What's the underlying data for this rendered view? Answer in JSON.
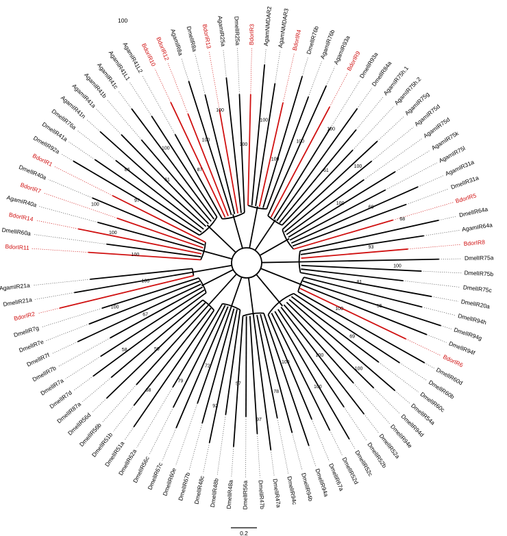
{
  "figure": {
    "corner_label": "100",
    "scale_label": "0.2",
    "highlight_color": "#d01010",
    "tips": [
      {
        "label": "AgamIR21a",
        "red": false
      },
      {
        "label": "DmelIR21a",
        "red": false
      },
      {
        "label": "BdorIR2",
        "red": true
      },
      {
        "label": "DmelIR7g",
        "red": false
      },
      {
        "label": "DmelIR7e",
        "red": false
      },
      {
        "label": "DmelIR7f",
        "red": false
      },
      {
        "label": "DmelIR7b",
        "red": false
      },
      {
        "label": "DmelIR7a",
        "red": false
      },
      {
        "label": "DmelIR7d",
        "red": false
      },
      {
        "label": "DmelIR87a",
        "red": false
      },
      {
        "label": "DmelIR56d",
        "red": false
      },
      {
        "label": "DmelIR56b",
        "red": false
      },
      {
        "label": "DmelIR51b",
        "red": false
      },
      {
        "label": "DmelIR51a",
        "red": false
      },
      {
        "label": "DmelIR62a",
        "red": false
      },
      {
        "label": "DmelIR56c",
        "red": false
      },
      {
        "label": "DmelIR67c",
        "red": false
      },
      {
        "label": "DmelIR60e",
        "red": false
      },
      {
        "label": "DmelIR67b",
        "red": false
      },
      {
        "label": "DmelIR48c",
        "red": false
      },
      {
        "label": "DmelIR48b",
        "red": false
      },
      {
        "label": "DmelIR48a",
        "red": false
      },
      {
        "label": "DmelIR56a",
        "red": false
      },
      {
        "label": "DmelIR47b",
        "red": false
      },
      {
        "label": "DmelIR47a",
        "red": false
      },
      {
        "label": "DmelIR94c",
        "red": false
      },
      {
        "label": "DmelIR94b",
        "red": false
      },
      {
        "label": "DmelIR94a",
        "red": false
      },
      {
        "label": "DmelIR67a",
        "red": false
      },
      {
        "label": "DmelIR52d",
        "red": false
      },
      {
        "label": "DmelIR52c",
        "red": false
      },
      {
        "label": "DmelIR52b",
        "red": false
      },
      {
        "label": "DmelIR52a",
        "red": false
      },
      {
        "label": "DmelIR94e",
        "red": false
      },
      {
        "label": "DmelIR94d",
        "red": false
      },
      {
        "label": "DmelIR54a",
        "red": false
      },
      {
        "label": "DmelIR60c",
        "red": false
      },
      {
        "label": "DmelIR60b",
        "red": false
      },
      {
        "label": "DmelIR60d",
        "red": false
      },
      {
        "label": "BdorIR6",
        "red": true
      },
      {
        "label": "DmelIR94f",
        "red": false
      },
      {
        "label": "DmelIR94g",
        "red": false
      },
      {
        "label": "DmelIR94h",
        "red": false
      },
      {
        "label": "DmelIR20a",
        "red": false
      },
      {
        "label": "DmelIR75c",
        "red": false
      },
      {
        "label": "DmelIR75b",
        "red": false
      },
      {
        "label": "DmelIR75a",
        "red": false
      },
      {
        "label": "BdorIR8",
        "red": true
      },
      {
        "label": "AgamIR64a",
        "red": false
      },
      {
        "label": "DmelIR64a",
        "red": false
      },
      {
        "label": "BdorIR5",
        "red": true
      },
      {
        "label": "DmelIR31a",
        "red": false
      },
      {
        "label": "AgamIR31a",
        "red": false
      },
      {
        "label": "AgamIR75l",
        "red": false
      },
      {
        "label": "AgamIR75k",
        "red": false
      },
      {
        "label": "AgamIR75d",
        "red": false
      },
      {
        "label": "AgamIR75d",
        "red": false
      },
      {
        "label": "AgamIR75g",
        "red": false
      },
      {
        "label": "AgamIR75h.2",
        "red": false
      },
      {
        "label": "AgamIR75h.1",
        "red": false
      },
      {
        "label": "DmelIR84a",
        "red": false
      },
      {
        "label": "DmelIR93a",
        "red": false
      },
      {
        "label": "BdorIR9",
        "red": true
      },
      {
        "label": "AgamIR93a",
        "red": false
      },
      {
        "label": "AgamIR76b",
        "red": false
      },
      {
        "label": "DmelIR76b",
        "red": false
      },
      {
        "label": "BdorIR4",
        "red": true
      },
      {
        "label": "AgamNMDAR3",
        "red": false
      },
      {
        "label": "AgamNMDAR2",
        "red": false
      },
      {
        "label": "BdorIR3",
        "red": true
      },
      {
        "label": "DmelIR25a",
        "red": false
      },
      {
        "label": "AgamIR25a",
        "red": false
      },
      {
        "label": "BdorIR13",
        "red": true
      },
      {
        "label": "DmelIR8a",
        "red": false
      },
      {
        "label": "AgamIR8a",
        "red": false
      },
      {
        "label": "BdorIR12",
        "red": true
      },
      {
        "label": "BdorIR10",
        "red": true
      },
      {
        "label": "AgamIR41L2",
        "red": false
      },
      {
        "label": "AgamIR41L1",
        "red": false
      },
      {
        "label": "AgamIR41c",
        "red": false
      },
      {
        "label": "AgamIR41b",
        "red": false
      },
      {
        "label": "AgamIR41a",
        "red": false
      },
      {
        "label": "AgamIR41n",
        "red": false
      },
      {
        "label": "DmelIR76a",
        "red": false
      },
      {
        "label": "DmelIR41a",
        "red": false
      },
      {
        "label": "DmelIR92a",
        "red": false
      },
      {
        "label": "BdorIR1",
        "red": true
      },
      {
        "label": "DmelIR40a",
        "red": false
      },
      {
        "label": "BdorIR7",
        "red": true
      },
      {
        "label": "AgamIR40a",
        "red": false
      },
      {
        "label": "BdorIR14",
        "red": true
      },
      {
        "label": "DmelIR60a",
        "red": false
      },
      {
        "label": "BdorIR11",
        "red": true
      }
    ],
    "support_values": [
      {
        "value": "100"
      },
      {
        "value": "100"
      },
      {
        "value": "67"
      },
      {
        "value": "58"
      },
      {
        "value": "50"
      },
      {
        "value": "68"
      },
      {
        "value": "79"
      },
      {
        "value": "72"
      },
      {
        "value": "92"
      },
      {
        "value": "57"
      },
      {
        "value": "97"
      },
      {
        "value": "78"
      },
      {
        "value": "100"
      },
      {
        "value": "100"
      },
      {
        "value": "100"
      },
      {
        "value": "100"
      },
      {
        "value": "69"
      },
      {
        "value": "100"
      },
      {
        "value": "55"
      },
      {
        "value": "81"
      },
      {
        "value": "100"
      },
      {
        "value": "93"
      },
      {
        "value": "68"
      },
      {
        "value": "69"
      },
      {
        "value": "100"
      },
      {
        "value": "100"
      },
      {
        "value": "61"
      },
      {
        "value": "100"
      },
      {
        "value": "100"
      },
      {
        "value": "100"
      },
      {
        "value": "100"
      },
      {
        "value": "100"
      },
      {
        "value": "100"
      },
      {
        "value": "100"
      },
      {
        "value": "87"
      },
      {
        "value": "100"
      },
      {
        "value": "61"
      },
      {
        "value": "86"
      },
      {
        "value": "97"
      },
      {
        "value": "100"
      },
      {
        "value": "100"
      },
      {
        "value": "100"
      }
    ]
  }
}
